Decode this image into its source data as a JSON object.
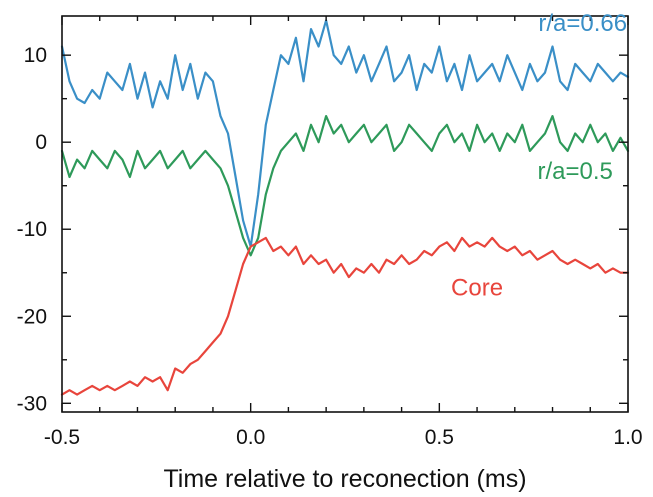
{
  "chart_data": {
    "type": "line",
    "title": "",
    "xlabel": "Time relative to reconection (ms)",
    "ylabel": "",
    "xlim": [
      -0.5,
      1.0
    ],
    "ylim": [
      -31,
      14.5
    ],
    "grid": false,
    "x_ticks": [
      {
        "value": -0.5,
        "label": "-0.5"
      },
      {
        "value": 0.0,
        "label": "0.0"
      },
      {
        "value": 0.5,
        "label": "0.5"
      },
      {
        "value": 1.0,
        "label": "1.0"
      }
    ],
    "x_minor_ticks": [
      -0.4,
      -0.3,
      -0.2,
      -0.1,
      0.1,
      0.2,
      0.3,
      0.4,
      0.6,
      0.7,
      0.8,
      0.9
    ],
    "y_ticks": [
      {
        "value": 10,
        "label": "10"
      },
      {
        "value": 0,
        "label": "0"
      },
      {
        "value": -10,
        "label": "-10"
      },
      {
        "value": -20,
        "label": "-20"
      },
      {
        "value": -30,
        "label": "-30"
      }
    ],
    "y_minor_ticks": [
      5,
      -5,
      -15,
      -25
    ],
    "series": [
      {
        "name": "r/a=0.66",
        "color": "#3a8fc7",
        "label_pos": {
          "x": 0.88,
          "y": 12.8
        },
        "x": [
          -0.5,
          -0.48,
          -0.46,
          -0.44,
          -0.42,
          -0.4,
          -0.38,
          -0.36,
          -0.34,
          -0.32,
          -0.3,
          -0.28,
          -0.26,
          -0.24,
          -0.22,
          -0.2,
          -0.18,
          -0.16,
          -0.14,
          -0.12,
          -0.1,
          -0.08,
          -0.06,
          -0.04,
          -0.02,
          0.0,
          0.02,
          0.04,
          0.06,
          0.08,
          0.1,
          0.12,
          0.14,
          0.16,
          0.18,
          0.2,
          0.22,
          0.24,
          0.26,
          0.28,
          0.3,
          0.32,
          0.34,
          0.36,
          0.38,
          0.4,
          0.42,
          0.44,
          0.46,
          0.48,
          0.5,
          0.52,
          0.54,
          0.56,
          0.58,
          0.6,
          0.62,
          0.64,
          0.66,
          0.68,
          0.7,
          0.72,
          0.74,
          0.76,
          0.78,
          0.8,
          0.82,
          0.84,
          0.86,
          0.88,
          0.9,
          0.92,
          0.94,
          0.96,
          0.98,
          1.0
        ],
        "y": [
          11,
          7,
          5,
          4.5,
          6,
          5,
          8,
          7,
          6,
          9,
          5,
          8,
          4,
          7,
          5,
          10,
          6,
          9,
          5,
          8,
          7,
          3,
          1,
          -4,
          -9,
          -12,
          -6,
          2,
          6,
          10,
          9,
          12,
          7,
          13,
          11,
          14,
          10,
          9,
          11,
          8,
          10,
          7,
          9,
          11,
          7,
          8,
          10,
          6,
          9,
          8,
          11,
          7,
          9,
          6,
          10,
          7,
          8,
          9,
          7,
          10,
          8,
          6,
          9,
          7,
          8,
          11,
          7,
          6,
          9,
          8,
          7,
          9,
          8,
          7,
          8,
          7.5
        ]
      },
      {
        "name": "r/a=0.5",
        "color": "#2e9a5a",
        "label_pos": {
          "x": 0.86,
          "y": -4.2
        },
        "x": [
          -0.5,
          -0.48,
          -0.46,
          -0.44,
          -0.42,
          -0.4,
          -0.38,
          -0.36,
          -0.34,
          -0.32,
          -0.3,
          -0.28,
          -0.26,
          -0.24,
          -0.22,
          -0.2,
          -0.18,
          -0.16,
          -0.14,
          -0.12,
          -0.1,
          -0.08,
          -0.06,
          -0.04,
          -0.02,
          0.0,
          0.02,
          0.04,
          0.06,
          0.08,
          0.1,
          0.12,
          0.14,
          0.16,
          0.18,
          0.2,
          0.22,
          0.24,
          0.26,
          0.28,
          0.3,
          0.32,
          0.34,
          0.36,
          0.38,
          0.4,
          0.42,
          0.44,
          0.46,
          0.48,
          0.5,
          0.52,
          0.54,
          0.56,
          0.58,
          0.6,
          0.62,
          0.64,
          0.66,
          0.68,
          0.7,
          0.72,
          0.74,
          0.76,
          0.78,
          0.8,
          0.82,
          0.84,
          0.86,
          0.88,
          0.9,
          0.92,
          0.94,
          0.96,
          0.98,
          1.0
        ],
        "y": [
          -1,
          -4,
          -2,
          -3,
          -1,
          -2,
          -3,
          -1,
          -2,
          -4,
          -1,
          -3,
          -2,
          -1,
          -3,
          -2,
          -1,
          -3,
          -2,
          -1,
          -2,
          -3,
          -5,
          -8,
          -11,
          -13,
          -11,
          -6,
          -3,
          -1,
          0,
          1,
          -1,
          2,
          0,
          3,
          1,
          2,
          0,
          1,
          2,
          0,
          1,
          2,
          -1,
          0,
          2,
          1,
          0,
          -1,
          1,
          2,
          0,
          1,
          -1,
          2,
          0,
          1,
          -1,
          1,
          0,
          2,
          -1,
          0,
          1,
          3,
          0,
          -1,
          1,
          0,
          2,
          0,
          1,
          -1,
          0.5,
          -1
        ]
      },
      {
        "name": "Core",
        "color": "#e8453c",
        "label_pos": {
          "x": 0.6,
          "y": -17.6
        },
        "x": [
          -0.5,
          -0.48,
          -0.46,
          -0.44,
          -0.42,
          -0.4,
          -0.38,
          -0.36,
          -0.34,
          -0.32,
          -0.3,
          -0.28,
          -0.26,
          -0.24,
          -0.22,
          -0.2,
          -0.18,
          -0.16,
          -0.14,
          -0.12,
          -0.1,
          -0.08,
          -0.06,
          -0.04,
          -0.02,
          0.0,
          0.02,
          0.04,
          0.06,
          0.08,
          0.1,
          0.12,
          0.14,
          0.16,
          0.18,
          0.2,
          0.22,
          0.24,
          0.26,
          0.28,
          0.3,
          0.32,
          0.34,
          0.36,
          0.38,
          0.4,
          0.42,
          0.44,
          0.46,
          0.48,
          0.5,
          0.52,
          0.54,
          0.56,
          0.58,
          0.6,
          0.62,
          0.64,
          0.66,
          0.68,
          0.7,
          0.72,
          0.74,
          0.76,
          0.78,
          0.8,
          0.82,
          0.84,
          0.86,
          0.88,
          0.9,
          0.92,
          0.94,
          0.96,
          0.98,
          1.0
        ],
        "y": [
          -29,
          -28.5,
          -29,
          -28.5,
          -28,
          -28.5,
          -28,
          -28.5,
          -28,
          -27.5,
          -28,
          -27,
          -27.5,
          -27,
          -28.5,
          -26,
          -26.5,
          -25.5,
          -25,
          -24,
          -23,
          -22,
          -20,
          -17,
          -14,
          -12,
          -11.5,
          -11,
          -12.5,
          -12,
          -13,
          -12,
          -14,
          -13,
          -14,
          -13.5,
          -15,
          -14,
          -15.5,
          -14.5,
          -15,
          -14,
          -15,
          -13.5,
          -14,
          -13,
          -14,
          -13.5,
          -12.5,
          -13,
          -12,
          -11.5,
          -12.5,
          -11,
          -12,
          -11.5,
          -12,
          -11,
          -12,
          -12.5,
          -12,
          -13,
          -12.5,
          -13.5,
          -13,
          -12.5,
          -13.5,
          -14,
          -13.5,
          -14,
          -14.5,
          -14,
          -15,
          -14.5,
          -15,
          -15
        ]
      }
    ]
  }
}
